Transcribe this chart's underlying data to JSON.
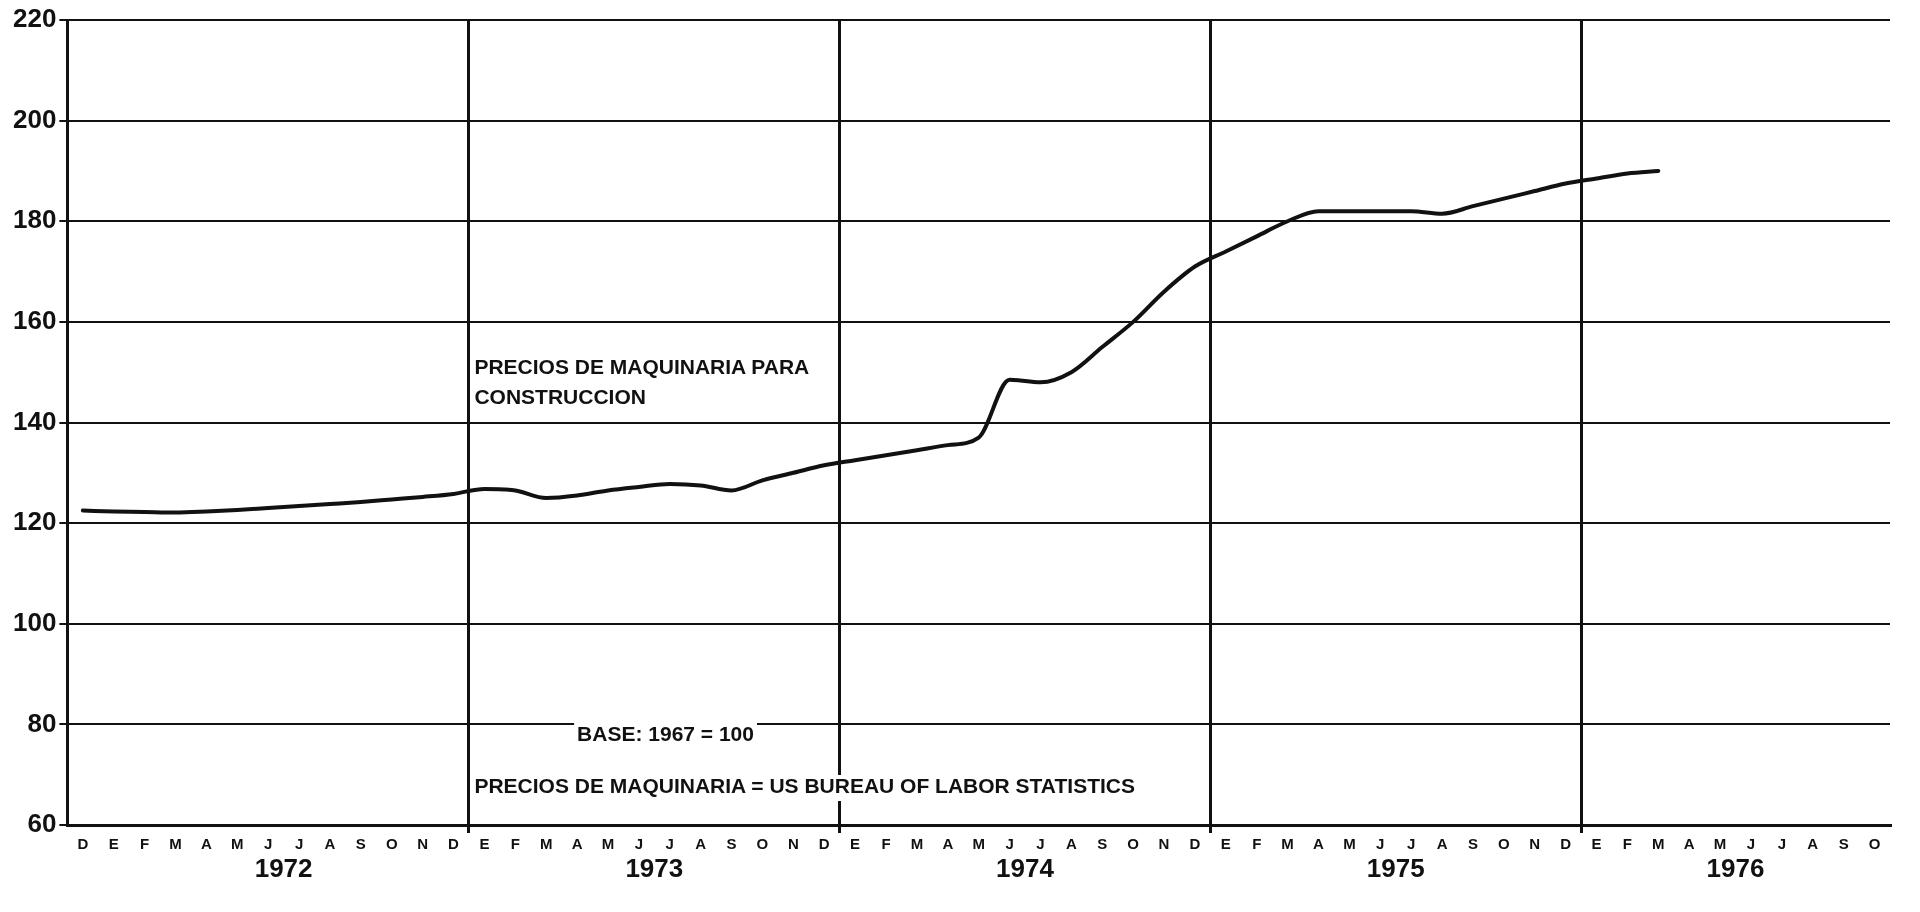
{
  "chart_data": {
    "type": "line",
    "categories": [
      "D",
      "E",
      "F",
      "M",
      "A",
      "M",
      "J",
      "J",
      "A",
      "S",
      "O",
      "N",
      "D",
      "E",
      "F",
      "M",
      "A",
      "M",
      "J",
      "J",
      "A",
      "S",
      "O",
      "N",
      "D",
      "E",
      "F",
      "M",
      "A",
      "M",
      "J",
      "J",
      "A",
      "S",
      "O",
      "N",
      "D",
      "E",
      "F",
      "M",
      "A",
      "M",
      "J",
      "J",
      "A",
      "S",
      "O",
      "N",
      "D",
      "E",
      "F",
      "M",
      "A",
      "M",
      "J",
      "J",
      "A",
      "S",
      "O"
    ],
    "series": [
      {
        "name": "PRECIOS DE MAQUINARIA PARA CONSTRUCCION",
        "color": "#111111",
        "values": [
          122.5,
          122.3,
          122.2,
          122.1,
          122.3,
          122.6,
          123,
          123.4,
          123.8,
          124.2,
          124.7,
          125.2,
          125.8,
          126.8,
          126.5,
          125,
          125.5,
          126.5,
          127.2,
          127.8,
          127.5,
          126.5,
          128.5,
          130,
          131.5,
          132.5,
          133.5,
          134.5,
          135.5,
          137,
          148.5,
          148,
          150,
          155,
          160,
          166,
          171,
          174,
          177,
          180,
          182,
          182,
          182,
          182,
          181.5,
          183,
          184.5,
          186,
          187.5,
          188.5,
          189.5,
          190,
          null,
          null,
          null,
          null,
          null,
          null,
          null
        ]
      }
    ],
    "ylim": [
      60,
      220
    ],
    "yticks": [
      60,
      80,
      100,
      120,
      140,
      160,
      180,
      200,
      220
    ],
    "grid": true,
    "marker": "none",
    "line_style": "solid",
    "annotations": [
      "1972",
      "1973",
      "1974",
      "1975",
      "1976",
      "BASE: 1967 = 100",
      "PRECIOS DE MAQUINARIA = US BUREAU OF LABOR STATISTICS"
    ]
  }
}
